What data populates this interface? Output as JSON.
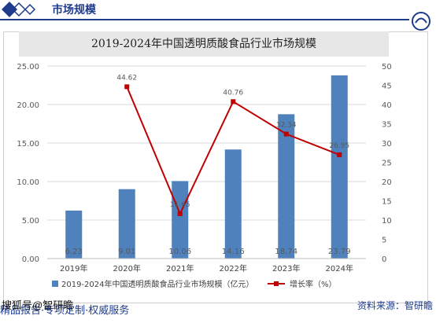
{
  "header": {
    "title": "市场规模"
  },
  "chart_data": {
    "type": "bar",
    "title": "2019-2024年中国透明质酸食品行业市场规模",
    "categories": [
      "2019年",
      "2020年",
      "2021年",
      "2022年",
      "2023年",
      "2024年"
    ],
    "series": [
      {
        "name": "2019-2024年中国透明质酸食品行业市场规模（亿元）",
        "type": "bar",
        "axis": "left",
        "color": "#4f81bd",
        "values": [
          6.23,
          9.01,
          10.06,
          14.16,
          18.74,
          23.79
        ],
        "value_labels": [
          "6.23",
          "9.01",
          "10.06",
          "14.16",
          "18.74",
          "23.79"
        ]
      },
      {
        "name": "增长率（%）",
        "type": "line",
        "axis": "right",
        "color": "#c00000",
        "values": [
          null,
          44.62,
          11.65,
          40.76,
          32.34,
          26.95
        ],
        "value_labels": [
          "",
          "44.62",
          "11.65",
          "40.76",
          "32.34",
          "26.95"
        ]
      }
    ],
    "y_left": {
      "lim": [
        0,
        25
      ],
      "ticks": [
        "0.00",
        "5.00",
        "10.00",
        "15.00",
        "20.00",
        "25.00"
      ]
    },
    "y_right": {
      "lim": [
        0,
        50
      ],
      "ticks": [
        "0",
        "5",
        "10",
        "15",
        "20",
        "25",
        "30",
        "35",
        "40",
        "45",
        "50"
      ]
    },
    "grid": true,
    "legend_position": "bottom"
  },
  "source": "资料来源：智研瞻",
  "footer": {
    "slogan": "精品报告·专项定制·权威服务",
    "watermark": "搜狐号@智研瞻"
  },
  "colors": {
    "brand": "#1f3b8c",
    "bar": "#4f81bd",
    "line": "#c00000"
  }
}
